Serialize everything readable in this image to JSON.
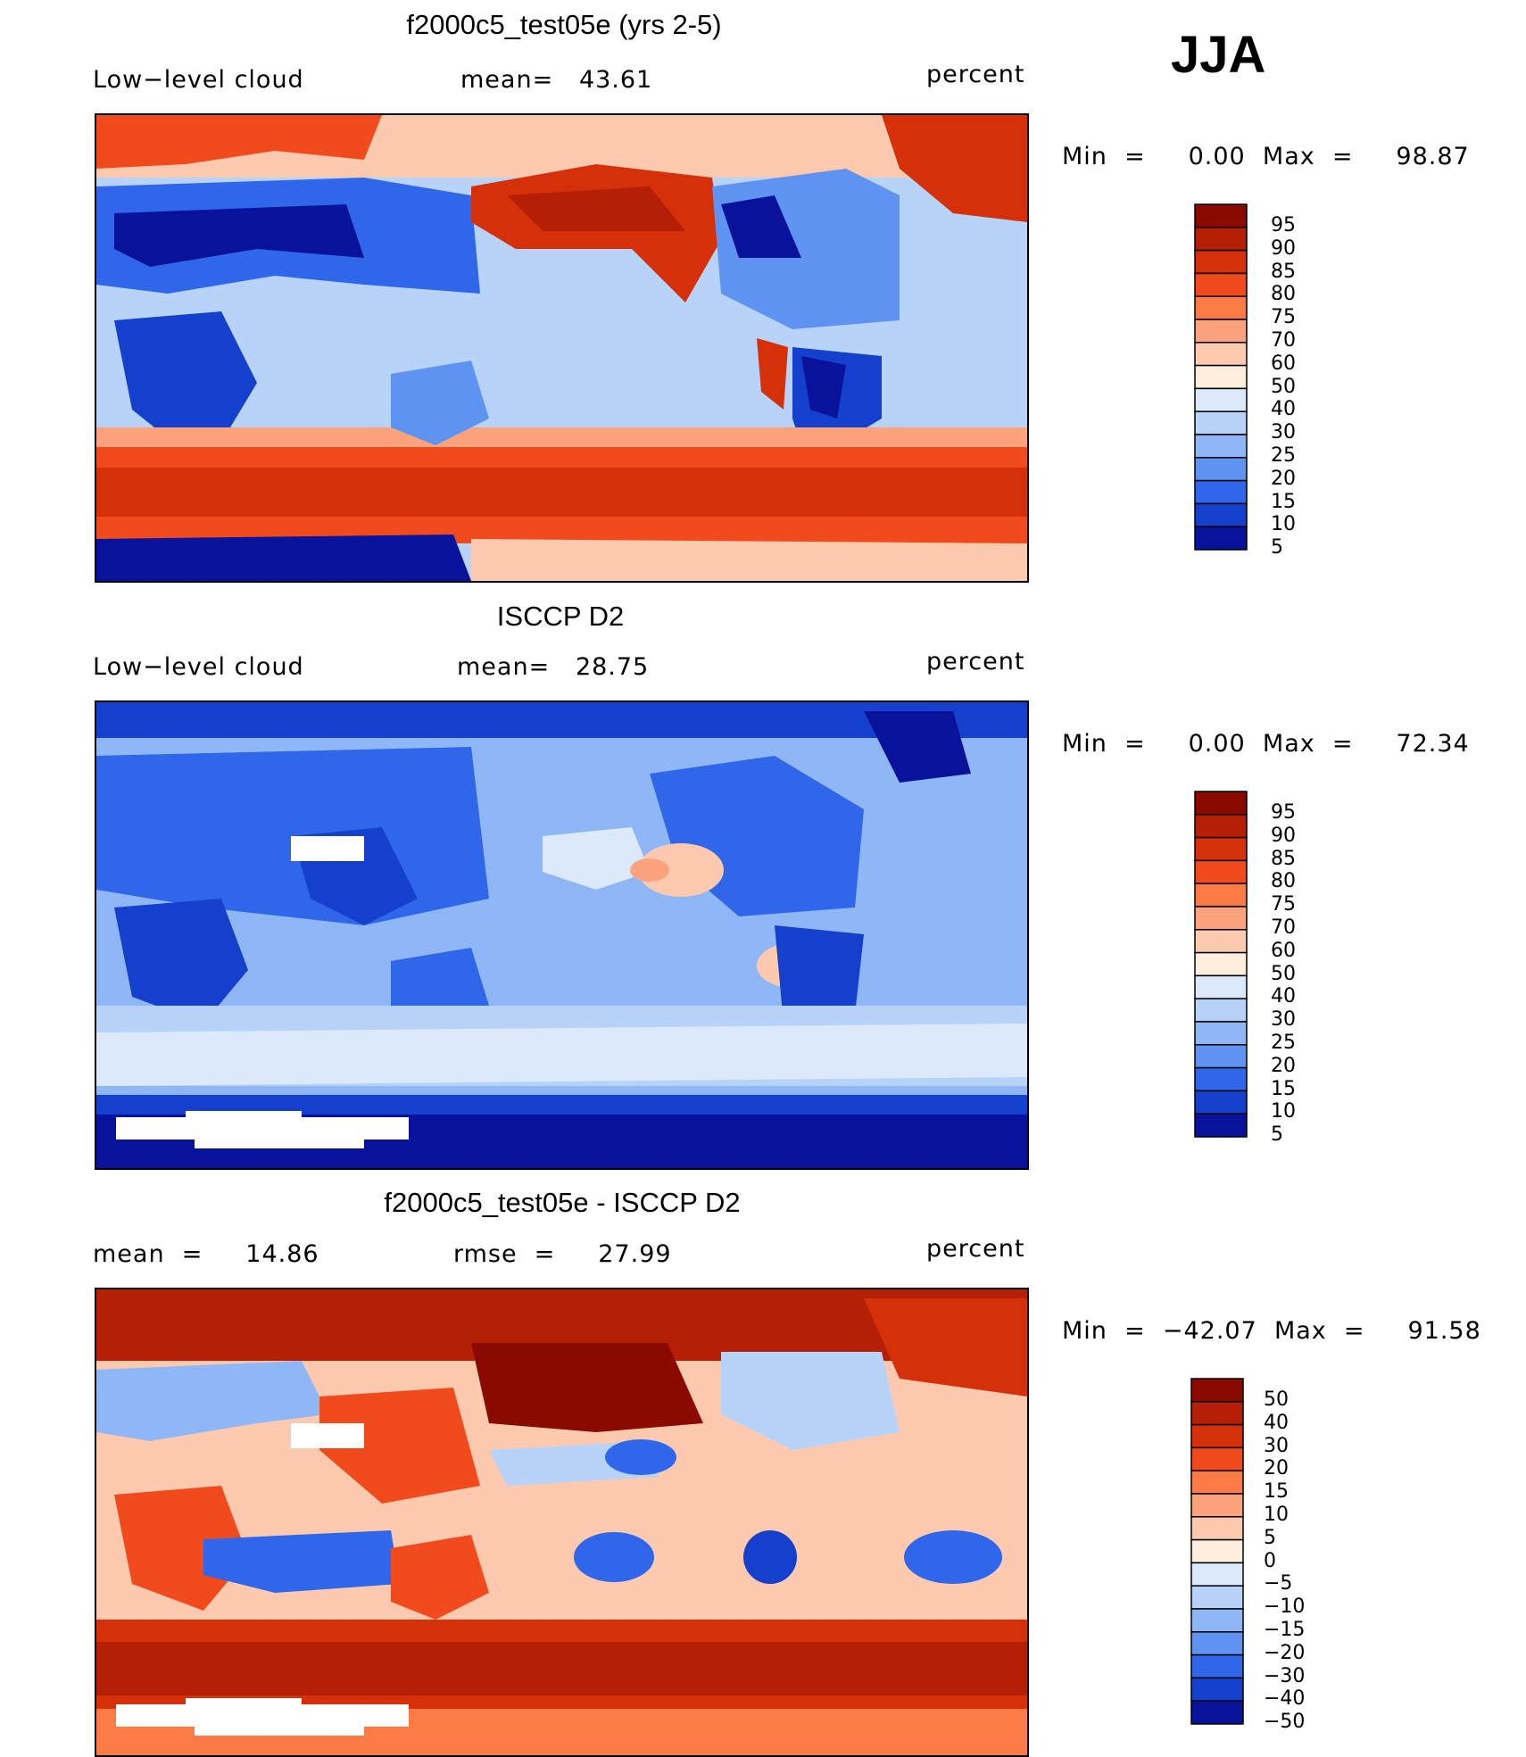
{
  "season": "JJA",
  "panels": [
    {
      "title": "f2000c5_test05e (yrs 2-5)",
      "left_label": "Low−level cloud",
      "center_label": "mean=   43.61",
      "right_label": "percent",
      "minmax": "Min  =     0.00  Max  =     98.87",
      "colorbar": [
        "95",
        "90",
        "85",
        "80",
        "75",
        "70",
        "60",
        "50",
        "40",
        "30",
        "25",
        "20",
        "15",
        "10",
        "5"
      ]
    },
    {
      "title": "ISCCP D2",
      "left_label": "Low−level cloud",
      "center_label": "mean=   28.75",
      "right_label": "percent",
      "minmax": "Min  =     0.00  Max  =     72.34",
      "colorbar": [
        "95",
        "90",
        "85",
        "80",
        "75",
        "70",
        "60",
        "50",
        "40",
        "30",
        "25",
        "20",
        "15",
        "10",
        "5"
      ]
    },
    {
      "title": "f2000c5_test05e - ISCCP D2",
      "left_label": "mean  =     14.86",
      "center_label": "rmse  =     27.99",
      "right_label": "percent",
      "minmax": "Min  =  −42.07  Max  =     91.58",
      "colorbar": [
        "50",
        "40",
        "30",
        "20",
        "15",
        "10",
        "5",
        "0",
        "−5",
        "−10",
        "−15",
        "−20",
        "−30",
        "−40",
        "−50"
      ]
    }
  ],
  "colors": {
    "scale_abs": [
      "#8a0a00",
      "#b51f05",
      "#d6300a",
      "#f14a1c",
      "#fb7a45",
      "#fca27c",
      "#fdcab0",
      "#fdeedd",
      "#dbe9fb",
      "#b7d3f9",
      "#8fb7f6",
      "#5f93f2",
      "#2f66ea",
      "#1440cd",
      "#08129a"
    ],
    "scale_diff": [
      "#8a0a00",
      "#b51f05",
      "#d6300a",
      "#f14a1c",
      "#fb7a45",
      "#fca27c",
      "#fdcab0",
      "#fdeedd",
      "#dbe9fb",
      "#b7d3f9",
      "#8fb7f6",
      "#5f93f2",
      "#2f66ea",
      "#1440cd",
      "#08129a"
    ]
  },
  "chart_data": [
    {
      "type": "heatmap",
      "title": "f2000c5_test05e (yrs 2-5)",
      "variable": "Low−level cloud",
      "units": "percent",
      "mean": 43.61,
      "min": 0.0,
      "max": 98.87,
      "contour_levels": [
        5,
        10,
        15,
        20,
        25,
        30,
        40,
        50,
        60,
        70,
        75,
        80,
        85,
        90,
        95
      ]
    },
    {
      "type": "heatmap",
      "title": "ISCCP D2",
      "variable": "Low−level cloud",
      "units": "percent",
      "mean": 28.75,
      "min": 0.0,
      "max": 72.34,
      "contour_levels": [
        5,
        10,
        15,
        20,
        25,
        30,
        40,
        50,
        60,
        70,
        75,
        80,
        85,
        90,
        95
      ]
    },
    {
      "type": "heatmap",
      "title": "f2000c5_test05e - ISCCP D2",
      "units": "percent",
      "mean": 14.86,
      "rmse": 27.99,
      "min": -42.07,
      "max": 91.58,
      "contour_levels": [
        -50,
        -40,
        -30,
        -20,
        -15,
        -10,
        -5,
        0,
        5,
        10,
        15,
        20,
        30,
        40,
        50
      ]
    }
  ]
}
